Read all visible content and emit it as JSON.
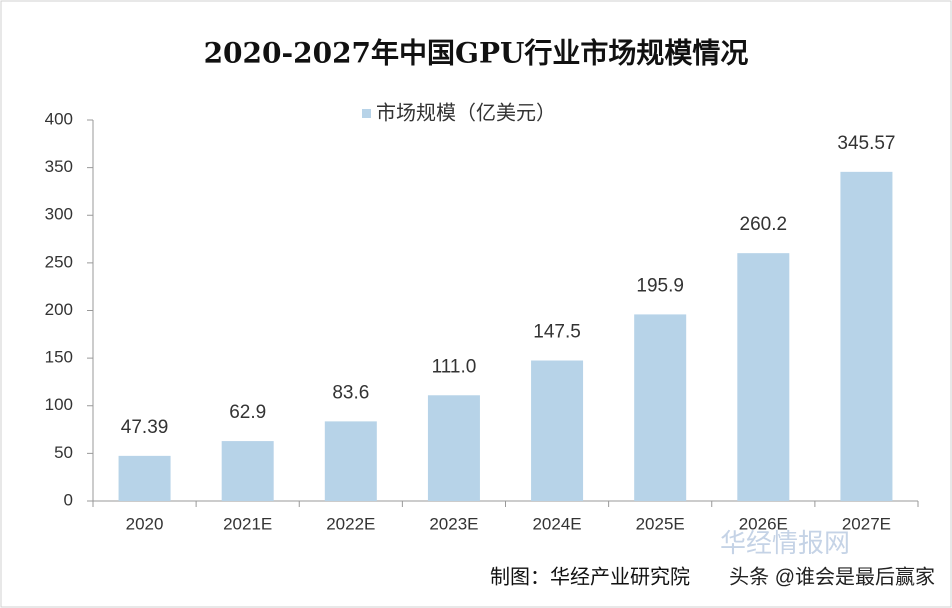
{
  "chart_data": {
    "type": "bar",
    "title": "2020-2027年中国GPU行业市场规模情况",
    "categories": [
      "2020",
      "2021E",
      "2022E",
      "2023E",
      "2024E",
      "2025E",
      "2026E",
      "2027E"
    ],
    "series": [
      {
        "name": "市场规模（亿美元）",
        "color": "#b7d3e8",
        "values": [
          47.39,
          62.9,
          83.6,
          111.0,
          147.5,
          195.9,
          260.2,
          345.57
        ],
        "value_labels": [
          "47.39",
          "62.9",
          "83.6",
          "111.0",
          "147.5",
          "195.9",
          "260.2",
          "345.57"
        ]
      }
    ],
    "ylim": [
      0,
      400
    ],
    "yticks": [
      0,
      50,
      100,
      150,
      200,
      250,
      300,
      350,
      400
    ],
    "grid": false,
    "source": "制图：华经产业研究院",
    "watermarks": [
      "华经情报网",
      "头条 @谁会是最后赢家"
    ]
  }
}
